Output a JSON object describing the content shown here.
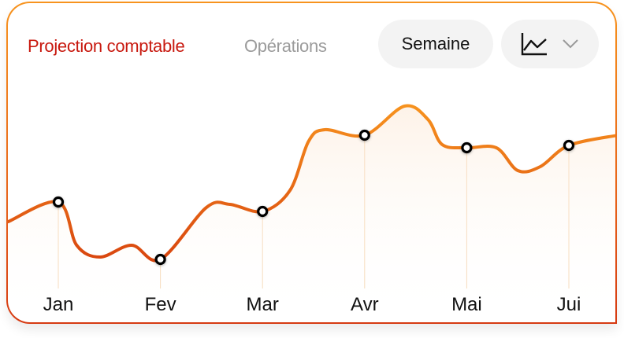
{
  "tabs": {
    "active": "Projection comptable",
    "inactive": "Opérations"
  },
  "period_select": {
    "label": "Semaine"
  },
  "chart_type_select": {
    "icon": "line-chart-icon",
    "chevron": "chevron-down-icon"
  },
  "colors": {
    "line_top": "#f7931e",
    "line_bottom": "#d9460f",
    "active_tab": "#c8190f",
    "inactive_tab": "#9b9b9b",
    "pill_bg": "#f3f3f3"
  },
  "chart_data": {
    "type": "line",
    "title": "Projection comptable",
    "categories": [
      "Jan",
      "Fev",
      "Mar",
      "Avr",
      "Mai",
      "Jui"
    ],
    "values": [
      105,
      32,
      93,
      190,
      174,
      177
    ],
    "curve": {
      "x": [
        -0.49,
        0,
        0.18,
        0.41,
        0.72,
        1,
        1.45,
        1.68,
        2,
        2.27,
        2.45,
        2.61,
        3,
        3.39,
        3.62,
        3.76,
        4,
        4.29,
        4.5,
        4.72,
        5,
        5.48
      ],
      "y": [
        80,
        105,
        50,
        35,
        50,
        32,
        98,
        102,
        93,
        120,
        182,
        197,
        190,
        227,
        210,
        178,
        174,
        174,
        145,
        150,
        177,
        190
      ]
    },
    "ylim": [
      0,
      260
    ],
    "grid": false,
    "xlabel": "",
    "ylabel": ""
  }
}
